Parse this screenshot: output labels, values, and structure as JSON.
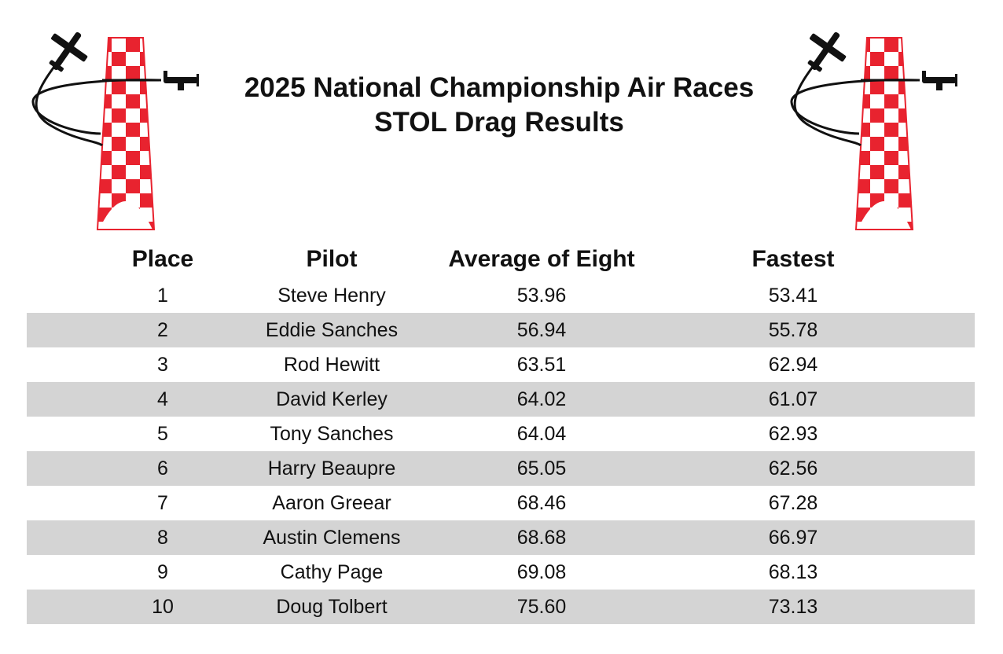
{
  "header": {
    "title_line1": "2025 National Championship Air Races",
    "title_line2": "STOL Drag Results"
  },
  "logo": {
    "icon": "air-race-pylon-with-planes",
    "checker_color": "#e8232f",
    "plane_color": "#111111"
  },
  "table": {
    "columns": [
      "Place",
      "Pilot",
      "Average of Eight",
      "Fastest"
    ],
    "rows": [
      {
        "place": "1",
        "pilot": "Steve Henry",
        "average": "53.96",
        "fastest": "53.41"
      },
      {
        "place": "2",
        "pilot": "Eddie Sanches",
        "average": "56.94",
        "fastest": "55.78"
      },
      {
        "place": "3",
        "pilot": "Rod Hewitt",
        "average": "63.51",
        "fastest": "62.94"
      },
      {
        "place": "4",
        "pilot": "David Kerley",
        "average": "64.02",
        "fastest": "61.07"
      },
      {
        "place": "5",
        "pilot": "Tony Sanches",
        "average": "64.04",
        "fastest": "62.93"
      },
      {
        "place": "6",
        "pilot": "Harry Beaupre",
        "average": "65.05",
        "fastest": "62.56"
      },
      {
        "place": "7",
        "pilot": "Aaron Greear",
        "average": "68.46",
        "fastest": "67.28"
      },
      {
        "place": "8",
        "pilot": "Austin Clemens",
        "average": "68.68",
        "fastest": "66.97"
      },
      {
        "place": "9",
        "pilot": "Cathy Page",
        "average": "69.08",
        "fastest": "68.13"
      },
      {
        "place": "10",
        "pilot": "Doug Tolbert",
        "average": "75.60",
        "fastest": "73.13"
      }
    ],
    "shaded_row_color": "#d4d4d4"
  }
}
